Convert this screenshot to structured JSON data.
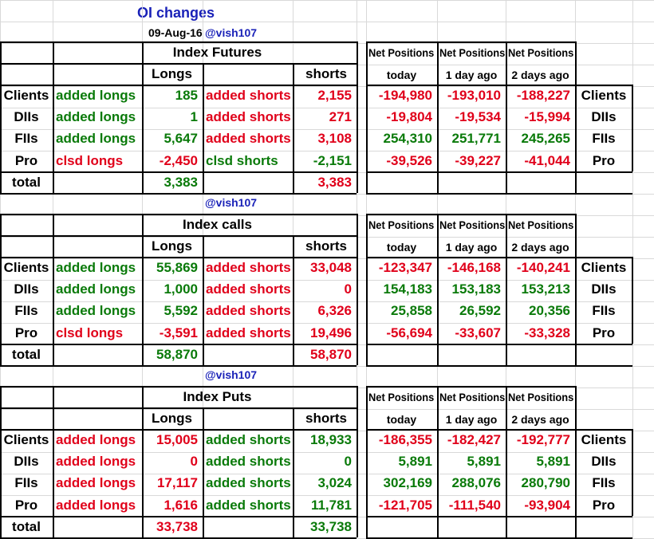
{
  "header": {
    "title": "OI changes",
    "date": "09-Aug-16",
    "handle": "@vish107"
  },
  "colors": {
    "positive": "#0a7a0a",
    "negative": "#e0001a",
    "handle": "#1a22b8",
    "border": "#000000",
    "grid": "#d9d9d9"
  },
  "np_header": {
    "title": "Net Positions",
    "today": "today",
    "d1": "1 day ago",
    "d2": "2 days ago"
  },
  "sections": [
    {
      "title": "Index Futures",
      "handle": "",
      "longs_header": "Longs",
      "shorts_header": "shorts",
      "rows": [
        {
          "party": "Clients",
          "la": "added longs",
          "lv": "185",
          "sa": "added shorts",
          "sv": "2,155",
          "n0": "-194,980",
          "n1": "-193,010",
          "n2": "-188,227"
        },
        {
          "party": "DIIs",
          "la": "added longs",
          "lv": "1",
          "sa": "added shorts",
          "sv": "271",
          "n0": "-19,804",
          "n1": "-19,534",
          "n2": "-15,994"
        },
        {
          "party": "FIIs",
          "la": "added longs",
          "lv": "5,647",
          "sa": "added shorts",
          "sv": "3,108",
          "n0": "254,310",
          "n1": "251,771",
          "n2": "245,265"
        },
        {
          "party": "Pro",
          "la": "clsd longs",
          "lv": "-2,450",
          "sa": "clsd shorts",
          "sv": "-2,151",
          "n0": "-39,526",
          "n1": "-39,227",
          "n2": "-41,044"
        }
      ],
      "total_label": "total",
      "total_longs": "3,383",
      "total_shorts": "3,383"
    },
    {
      "title": "Index calls",
      "handle": "@vish107",
      "longs_header": "Longs",
      "shorts_header": "shorts",
      "rows": [
        {
          "party": "Clients",
          "la": "added longs",
          "lv": "55,869",
          "sa": "added shorts",
          "sv": "33,048",
          "n0": "-123,347",
          "n1": "-146,168",
          "n2": "-140,241"
        },
        {
          "party": "DIIs",
          "la": "added longs",
          "lv": "1,000",
          "sa": "added shorts",
          "sv": "0",
          "n0": "154,183",
          "n1": "153,183",
          "n2": "153,213"
        },
        {
          "party": "FIIs",
          "la": "added longs",
          "lv": "5,592",
          "sa": "added shorts",
          "sv": "6,326",
          "n0": "25,858",
          "n1": "26,592",
          "n2": "20,356"
        },
        {
          "party": "Pro",
          "la": "clsd longs",
          "lv": "-3,591",
          "sa": "added shorts",
          "sv": "19,496",
          "n0": "-56,694",
          "n1": "-33,607",
          "n2": "-33,328"
        }
      ],
      "total_label": "total",
      "total_longs": "58,870",
      "total_shorts": "58,870"
    },
    {
      "title": "Index Puts",
      "handle": "@vish107",
      "longs_header": "Longs",
      "shorts_header": "shorts",
      "rows": [
        {
          "party": "Clients",
          "la": "added longs",
          "lv": "15,005",
          "sa": "added shorts",
          "sv": "18,933",
          "n0": "-186,355",
          "n1": "-182,427",
          "n2": "-192,777"
        },
        {
          "party": "DIIs",
          "la": "added longs",
          "lv": "0",
          "sa": "added shorts",
          "sv": "0",
          "n0": "5,891",
          "n1": "5,891",
          "n2": "5,891"
        },
        {
          "party": "FIIs",
          "la": "added longs",
          "lv": "17,117",
          "sa": "added shorts",
          "sv": "3,024",
          "n0": "302,169",
          "n1": "288,076",
          "n2": "280,790"
        },
        {
          "party": "Pro",
          "la": "added longs",
          "lv": "1,616",
          "sa": "added shorts",
          "sv": "11,781",
          "n0": "-121,705",
          "n1": "-111,540",
          "n2": "-93,904"
        }
      ],
      "total_label": "total",
      "total_longs": "33,738",
      "total_shorts": "33,738"
    }
  ]
}
